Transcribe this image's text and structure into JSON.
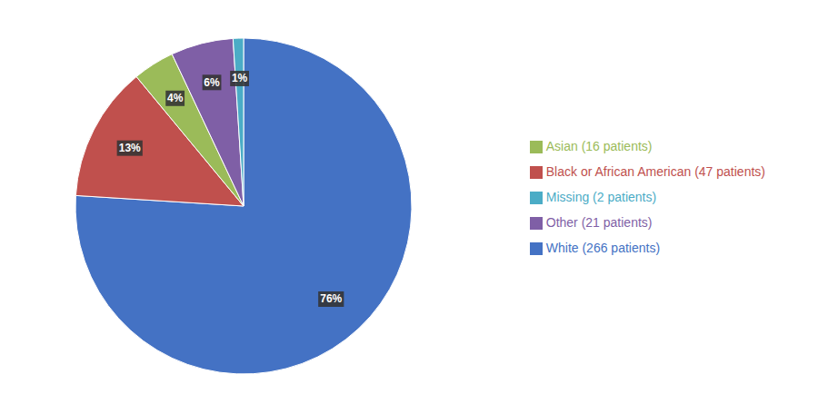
{
  "chart_data": {
    "type": "pie",
    "categories": [
      "White (266 patients)",
      "Black or African American (47 patients)",
      "Asian (16 patients)",
      "Other (21 patients)",
      "Missing (2 patients)"
    ],
    "values": [
      76,
      13,
      4,
      6,
      1
    ],
    "value_labels": [
      "76%",
      "13%",
      "4%",
      "6%",
      "1%"
    ],
    "colors": [
      "#4472C4",
      "#C0504D",
      "#9BBB59",
      "#7F5FA6",
      "#4BACC6"
    ],
    "data_labels": true,
    "legend": "right"
  }
}
